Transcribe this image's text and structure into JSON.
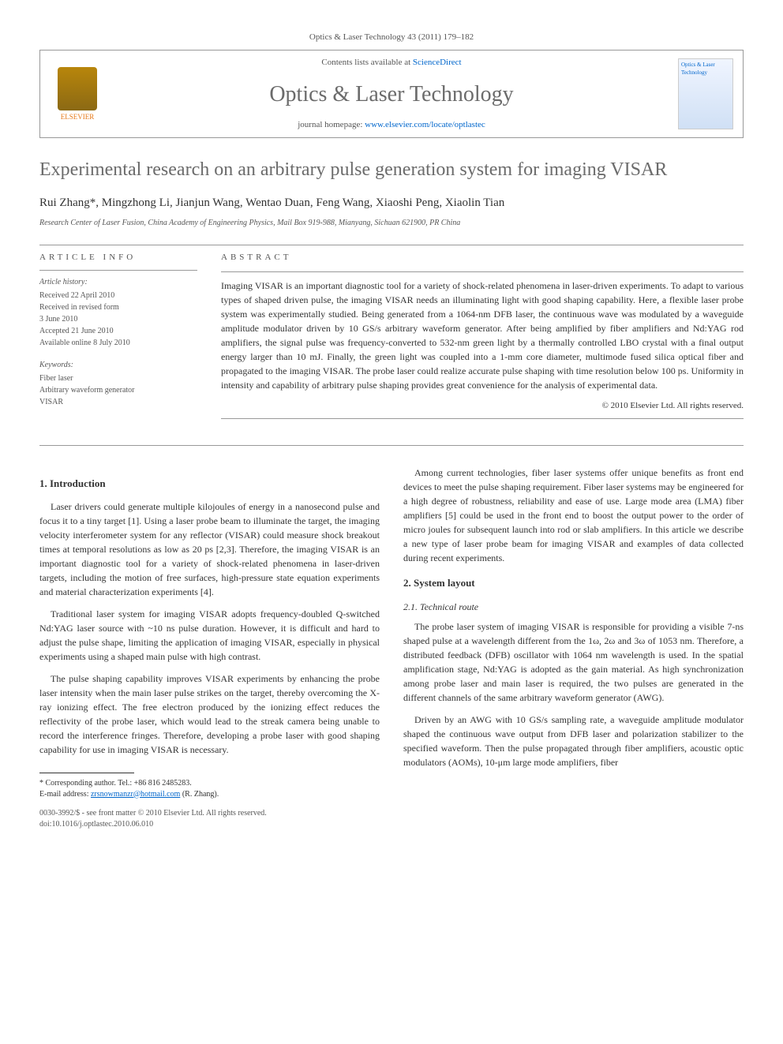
{
  "journal_ref": "Optics & Laser Technology 43 (2011) 179–182",
  "header": {
    "publisher": "ELSEVIER",
    "contents_prefix": "Contents lists available at ",
    "contents_link": "ScienceDirect",
    "journal_title": "Optics & Laser Technology",
    "homepage_prefix": "journal homepage: ",
    "homepage_url": "www.elsevier.com/locate/optlastec",
    "cover_text": "Optics & Laser Technology"
  },
  "title": "Experimental research on an arbitrary pulse generation system for imaging VISAR",
  "authors": "Rui Zhang*, Mingzhong Li, Jianjun Wang, Wentao Duan, Feng Wang, Xiaoshi Peng, Xiaolin Tian",
  "affiliation": "Research Center of Laser Fusion, China Academy of Engineering Physics, Mail Box 919-988, Mianyang, Sichuan 621900, PR China",
  "info": {
    "heading": "ARTICLE INFO",
    "history_heading": "Article history:",
    "history": [
      "Received 22 April 2010",
      "Received in revised form",
      "3 June 2010",
      "Accepted 21 June 2010",
      "Available online 8 July 2010"
    ],
    "keywords_heading": "Keywords:",
    "keywords": [
      "Fiber laser",
      "Arbitrary waveform generator",
      "VISAR"
    ]
  },
  "abstract": {
    "heading": "ABSTRACT",
    "text": "Imaging VISAR is an important diagnostic tool for a variety of shock-related phenomena in laser-driven experiments. To adapt to various types of shaped driven pulse, the imaging VISAR needs an illuminating light with good shaping capability. Here, a flexible laser probe system was experimentally studied. Being generated from a 1064-nm DFB laser, the continuous wave was modulated by a waveguide amplitude modulator driven by 10 GS/s arbitrary waveform generator. After being amplified by fiber amplifiers and Nd:YAG rod amplifiers, the signal pulse was frequency-converted to 532-nm green light by a thermally controlled LBO crystal with a final output energy larger than 10 mJ. Finally, the green light was coupled into a 1-mm core diameter, multimode fused silica optical fiber and propagated to the imaging VISAR. The probe laser could realize accurate pulse shaping with time resolution below 100 ps. Uniformity in intensity and capability of arbitrary pulse shaping provides great convenience for the analysis of experimental data.",
    "copyright": "© 2010 Elsevier Ltd. All rights reserved."
  },
  "sections": {
    "intro_heading": "1. Introduction",
    "intro_p1": "Laser drivers could generate multiple kilojoules of energy in a nanosecond pulse and focus it to a tiny target [1]. Using a laser probe beam to illuminate the target, the imaging velocity interferometer system for any reflector (VISAR) could measure shock breakout times at temporal resolutions as low as 20 ps [2,3]. Therefore, the imaging VISAR is an important diagnostic tool for a variety of shock-related phenomena in laser-driven targets, including the motion of free surfaces, high-pressure state equation experiments and material characterization experiments [4].",
    "intro_p2": "Traditional laser system for imaging VISAR adopts frequency-doubled Q-switched Nd:YAG laser source with ~10 ns pulse duration. However, it is difficult and hard to adjust the pulse shape, limiting the application of imaging VISAR, especially in physical experiments using a shaped main pulse with high contrast.",
    "intro_p3": "The pulse shaping capability improves VISAR experiments by enhancing the probe laser intensity when the main laser pulse strikes on the target, thereby overcoming the X-ray ionizing effect. The free electron produced by the ionizing effect reduces the reflectivity of the probe laser, which would lead to the streak camera being unable to record the interference fringes. Therefore, developing a probe laser with good shaping capability for use in imaging VISAR is necessary.",
    "intro_p4": "Among current technologies, fiber laser systems offer unique benefits as front end devices to meet the pulse shaping requirement. Fiber laser systems may be engineered for a high degree of robustness, reliability and ease of use. Large mode area (LMA) fiber amplifiers [5] could be used in the front end to boost the output power to the order of micro joules for subsequent launch into rod or slab amplifiers. In this article we describe a new type of laser probe beam for imaging VISAR and examples of data collected during recent experiments.",
    "layout_heading": "2. System layout",
    "tech_heading": "2.1. Technical route",
    "tech_p1": "The probe laser system of imaging VISAR is responsible for providing a visible 7-ns shaped pulse at a wavelength different from the 1ω, 2ω and 3ω of 1053 nm. Therefore, a distributed feedback (DFB) oscillator with 1064 nm wavelength is used. In the spatial amplification stage, Nd:YAG is adopted as the gain material. As high synchronization among probe laser and main laser is required, the two pulses are generated in the different channels of the same arbitrary waveform generator (AWG).",
    "tech_p2": "Driven by an AWG with 10 GS/s sampling rate, a waveguide amplitude modulator shaped the continuous wave output from DFB laser and polarization stabilizer to the specified waveform. Then the pulse propagated through fiber amplifiers, acoustic optic modulators (AOMs), 10-μm large mode amplifiers, fiber"
  },
  "footnote": {
    "corr": "* Corresponding author. Tel.: +86 816 2485283.",
    "email_label": "E-mail address: ",
    "email": "zrsnowmanzr@hotmail.com",
    "email_suffix": " (R. Zhang)."
  },
  "doi": {
    "line1": "0030-3992/$ - see front matter © 2010 Elsevier Ltd. All rights reserved.",
    "line2": "doi:10.1016/j.optlastec.2010.06.010"
  }
}
